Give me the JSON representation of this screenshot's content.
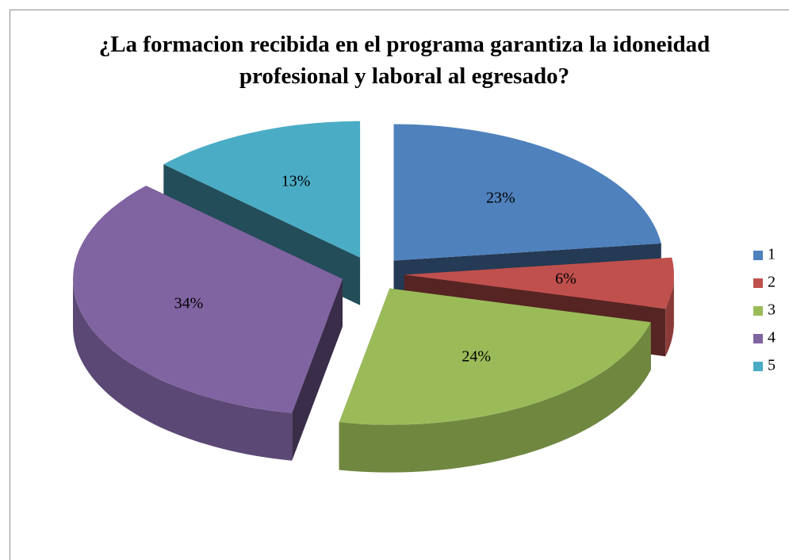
{
  "chart_data": {
    "type": "pie",
    "title": "¿La formacion recibida en el programa garantiza la idoneidad profesional y laboral al egresado?",
    "categories": [
      "1",
      "2",
      "3",
      "4",
      "5"
    ],
    "values": [
      23,
      6,
      24,
      34,
      13
    ],
    "value_labels": [
      "23%",
      "6%",
      "24%",
      "34%",
      "13%"
    ],
    "colors": [
      "#4f81bd",
      "#c0504d",
      "#9bbb59",
      "#8064a2",
      "#4bacc6"
    ],
    "legend": "right"
  }
}
